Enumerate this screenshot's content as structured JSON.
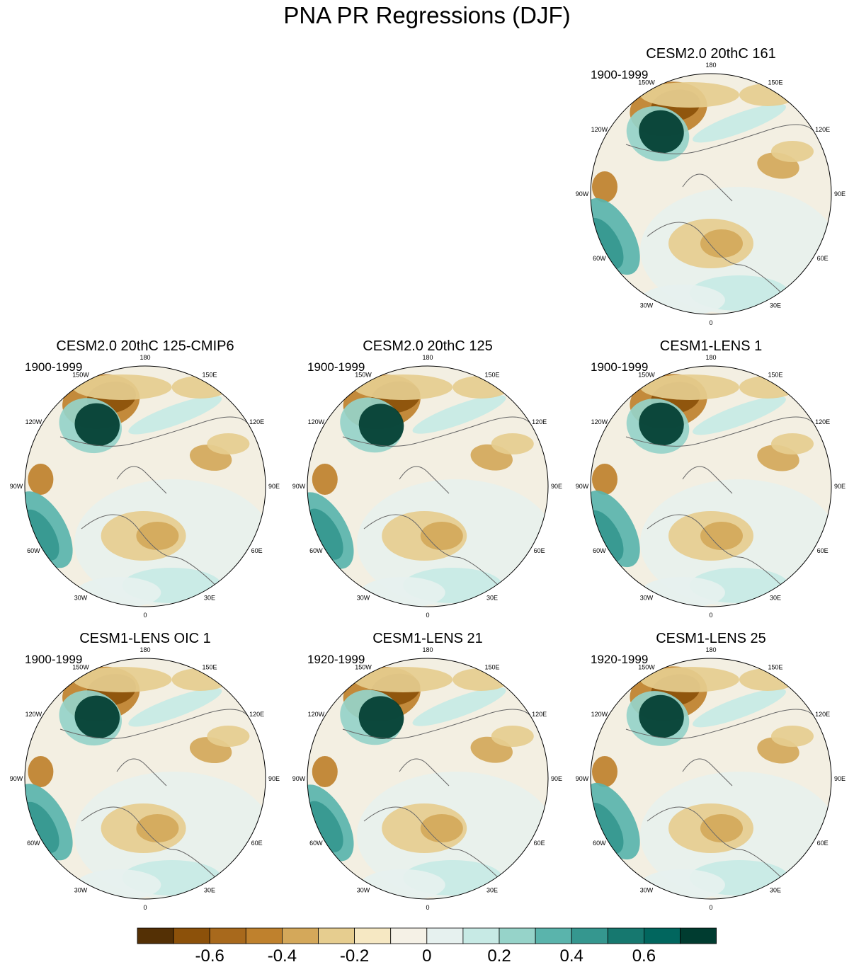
{
  "title": "PNA PR Regressions (DJF)",
  "longitude_labels": [
    "180",
    "150E",
    "120E",
    "90E",
    "60E",
    "30E",
    "0",
    "30W",
    "60W",
    "90W",
    "120W",
    "150W"
  ],
  "panels": [
    {
      "id": "p1",
      "title": "CESM2.0 20thC 161",
      "years": "1900-1999"
    },
    {
      "id": "p2",
      "title": "CESM2.0 20thC 125-CMIP6",
      "years": "1900-1999"
    },
    {
      "id": "p3",
      "title": "CESM2.0 20thC 125",
      "years": "1900-1999"
    },
    {
      "id": "p4",
      "title": "CESM1-LENS 1",
      "years": "1900-1999"
    },
    {
      "id": "p5",
      "title": "CESM1-LENS OIC 1",
      "years": "1900-1999"
    },
    {
      "id": "p6",
      "title": "CESM1-LENS 21",
      "years": "1920-1999"
    },
    {
      "id": "p7",
      "title": "CESM1-LENS 25",
      "years": "1920-1999"
    }
  ],
  "colorbar": {
    "colors": [
      "#543005",
      "#8c510a",
      "#a8691c",
      "#bf812d",
      "#d4a85a",
      "#e6cd8f",
      "#f6e8c3",
      "#f5f1e6",
      "#e6f1ef",
      "#c7eae5",
      "#96d3c9",
      "#5ab4ac",
      "#35978f",
      "#16786f",
      "#01665e",
      "#003c30"
    ],
    "tick_labels": [
      "-0.6",
      "-0.4",
      "-0.2",
      "0",
      "0.2",
      "0.4",
      "0.6"
    ]
  }
}
